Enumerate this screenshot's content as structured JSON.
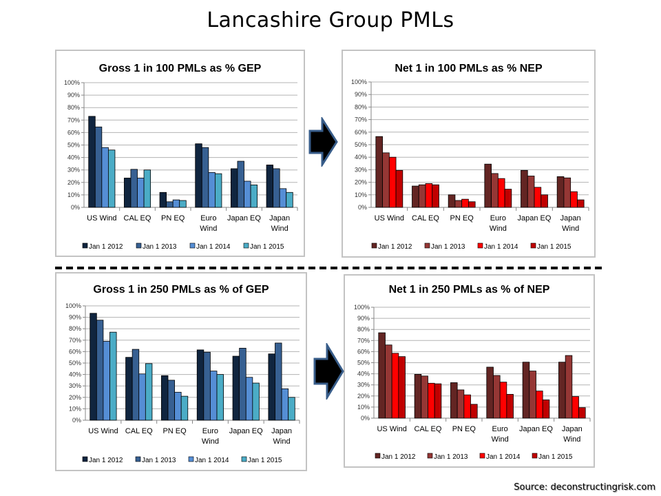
{
  "page": {
    "title": "Lancashire Group PMLs",
    "source": "Source: deconstructingrisk.com"
  },
  "chart_data": [
    {
      "id": "gross100",
      "type": "bar",
      "title": "Gross 1 in 100 PMLs as % GEP",
      "xlabel": "",
      "ylabel": "",
      "ylim": [
        0,
        100
      ],
      "yticks": [
        "0%",
        "10%",
        "20%",
        "30%",
        "40%",
        "50%",
        "60%",
        "70%",
        "80%",
        "90%",
        "100%"
      ],
      "categories": [
        [
          "US Wind"
        ],
        [
          "CAL EQ"
        ],
        [
          "PN EQ"
        ],
        [
          "Euro",
          "Wind"
        ],
        [
          "Japan EQ"
        ],
        [
          "Japan",
          "Wind"
        ]
      ],
      "grid": true,
      "legend": "bottom",
      "series": [
        {
          "name": "Jan 1 2012",
          "color": "#10253f",
          "values": [
            73,
            23.5,
            12,
            51,
            31,
            34
          ]
        },
        {
          "name": "Jan 1 2013",
          "color": "#376092",
          "values": [
            64.5,
            30.5,
            4.5,
            48,
            37,
            31
          ]
        },
        {
          "name": "Jan 1 2014",
          "color": "#558ed5",
          "values": [
            48,
            23.5,
            6,
            28,
            21,
            15
          ]
        },
        {
          "name": "Jan 1 2015",
          "color": "#4bacc6",
          "values": [
            46,
            30,
            5.5,
            27,
            18,
            12
          ]
        }
      ]
    },
    {
      "id": "net100",
      "type": "bar",
      "title": "Net 1 in 100 PMLs as % NEP",
      "xlabel": "",
      "ylabel": "",
      "ylim": [
        0,
        100
      ],
      "yticks": [
        "0%",
        "10%",
        "20%",
        "30%",
        "40%",
        "50%",
        "60%",
        "70%",
        "80%",
        "90%",
        "100%"
      ],
      "categories": [
        [
          "US Wind"
        ],
        [
          "CAL EQ"
        ],
        [
          "PN EQ"
        ],
        [
          "Euro",
          "Wind"
        ],
        [
          "Japan EQ"
        ],
        [
          "Japan",
          "Wind"
        ]
      ],
      "grid": true,
      "legend": "bottom",
      "series": [
        {
          "name": "Jan 1 2012",
          "color": "#632523",
          "values": [
            56.5,
            17,
            10,
            34.5,
            29.5,
            24.5
          ]
        },
        {
          "name": "Jan 1 2013",
          "color": "#953735",
          "values": [
            43.5,
            18,
            5.5,
            27,
            25,
            23.5
          ]
        },
        {
          "name": "Jan 1 2014",
          "color": "#ff0000",
          "values": [
            40,
            19,
            6.5,
            23,
            16,
            12.5
          ]
        },
        {
          "name": "Jan 1 2015",
          "color": "#c00000",
          "values": [
            29.5,
            18,
            4.5,
            14.5,
            10,
            6
          ]
        }
      ]
    },
    {
      "id": "gross250",
      "type": "bar",
      "title": "Gross 1 in 250 PMLs as % of GEP",
      "xlabel": "",
      "ylabel": "",
      "ylim": [
        0,
        100
      ],
      "yticks": [
        "0%",
        "10%",
        "20%",
        "30%",
        "40%",
        "50%",
        "60%",
        "70%",
        "80%",
        "90%",
        "100%"
      ],
      "categories": [
        [
          "US Wind"
        ],
        [
          "CAL EQ"
        ],
        [
          "PN EQ"
        ],
        [
          "Euro",
          "Wind"
        ],
        [
          "Japan EQ"
        ],
        [
          "Japan",
          "Wind"
        ]
      ],
      "grid": true,
      "legend": "bottom",
      "series": [
        {
          "name": "Jan 1 2012",
          "color": "#10253f",
          "values": [
            93.5,
            55,
            39,
            61.5,
            56,
            58
          ]
        },
        {
          "name": "Jan 1 2013",
          "color": "#376092",
          "values": [
            87.5,
            62,
            35,
            59.5,
            63,
            67.5
          ]
        },
        {
          "name": "Jan 1 2014",
          "color": "#558ed5",
          "values": [
            69,
            40.5,
            24.5,
            43,
            37.5,
            27.5
          ]
        },
        {
          "name": "Jan 1 2015",
          "color": "#4bacc6",
          "values": [
            77,
            49.5,
            21,
            40,
            32.5,
            20
          ]
        }
      ]
    },
    {
      "id": "net250",
      "type": "bar",
      "title": "Net 1 in 250 PMLs as % of NEP",
      "xlabel": "",
      "ylabel": "",
      "ylim": [
        0,
        100
      ],
      "yticks": [
        "0%",
        "10%",
        "20%",
        "30%",
        "40%",
        "50%",
        "60%",
        "70%",
        "80%",
        "90%",
        "100%"
      ],
      "categories": [
        [
          "US Wind"
        ],
        [
          "CAL EQ"
        ],
        [
          "PN EQ"
        ],
        [
          "Euro",
          "Wind"
        ],
        [
          "Japan EQ"
        ],
        [
          "Japan",
          "Wind"
        ]
      ],
      "grid": true,
      "legend": "bottom",
      "series": [
        {
          "name": "Jan 1 2012",
          "color": "#632523",
          "values": [
            77,
            39.5,
            32,
            46,
            50.5,
            50.5
          ]
        },
        {
          "name": "Jan 1 2013",
          "color": "#953735",
          "values": [
            66,
            38,
            25.5,
            38.5,
            42.5,
            56.5
          ]
        },
        {
          "name": "Jan 1 2014",
          "color": "#ff0000",
          "values": [
            58.5,
            31.5,
            21,
            32.5,
            24.5,
            19.5
          ]
        },
        {
          "name": "Jan 1 2015",
          "color": "#c00000",
          "values": [
            55.5,
            31,
            12.5,
            21.5,
            16.5,
            9.5
          ]
        }
      ]
    }
  ]
}
